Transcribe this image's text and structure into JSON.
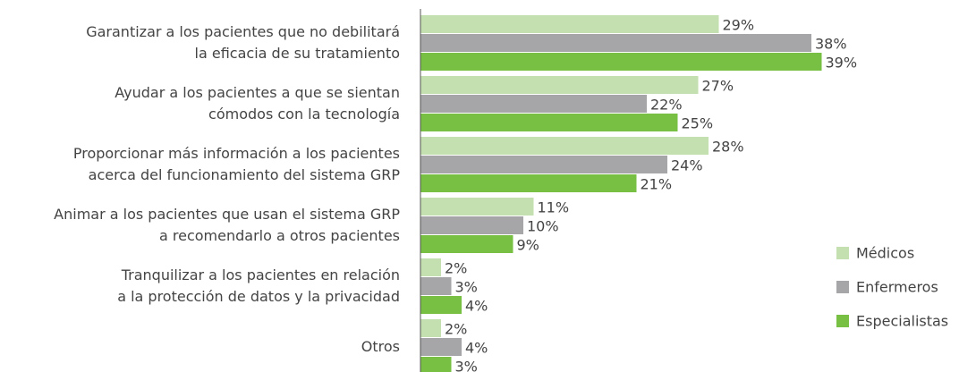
{
  "chart_data": {
    "type": "bar",
    "orientation": "horizontal",
    "categories": [
      "Garantizar a los pacientes que no debilitará\nla eficacia de su tratamiento",
      "Ayudar a los pacientes a que se sientan\ncómodos con la tecnología",
      "Proporcionar más información a los pacientes\nacerca del funcionamiento del sistema GRP",
      "Animar a los pacientes que usan el sistema GRP\na recomendarlo a otros pacientes",
      "Tranquilizar a los pacientes en relación\na la protección de datos y la privacidad",
      "Otros"
    ],
    "series": [
      {
        "name": "Médicos",
        "color": "#c5e0b0",
        "values": [
          29,
          27,
          28,
          11,
          2,
          2
        ],
        "value_labels": [
          "29%",
          "27%",
          "28%",
          "11%",
          "2%",
          "2%"
        ]
      },
      {
        "name": "Enfermeros",
        "color": "#a6a6a8",
        "values": [
          38,
          22,
          24,
          10,
          3,
          4
        ],
        "value_labels": [
          "38%",
          "22%",
          "24%",
          "10%",
          "3%",
          "4%"
        ]
      },
      {
        "name": "Especialistas",
        "color": "#78c043",
        "values": [
          39,
          25,
          21,
          9,
          4,
          3
        ],
        "value_labels": [
          "39%",
          "25%",
          "21%",
          "9%",
          "4%",
          "3%"
        ]
      }
    ],
    "xlim": [
      0,
      40
    ],
    "legend": "right"
  }
}
